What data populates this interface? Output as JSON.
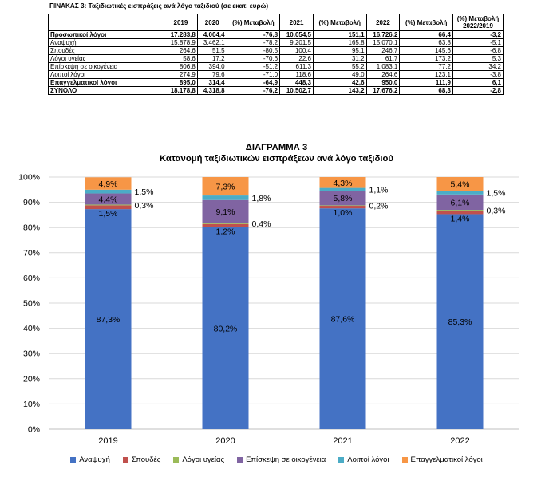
{
  "table": {
    "title": "ΠΙΝΑΚΑΣ 3: Ταξιδιωτικές εισπράξεις ανά λόγο ταξιδιού (σε εκατ. ευρώ)",
    "headers": [
      "",
      "2019",
      "2020",
      "(%) Μεταβολή",
      "2021",
      "(%) Μεταβολή",
      "2022",
      "(%) Μεταβολή",
      "(%) Μεταβολή 2022/2019"
    ],
    "rows": [
      {
        "label": "Προσωπικοί λόγοι",
        "bold": true,
        "values": [
          "17.283,8",
          "4.004,4",
          "-76,8",
          "10.054,5",
          "151,1",
          "16.726,2",
          "66,4",
          "-3,2"
        ]
      },
      {
        "label": "Αναψυχή",
        "bold": false,
        "values": [
          "15.878,9",
          "3.462,1",
          "-78,2",
          "9.201,5",
          "165,8",
          "15.070,1",
          "63,8",
          "-5,1"
        ]
      },
      {
        "label": "Σπουδές",
        "bold": false,
        "values": [
          "264,6",
          "51,5",
          "-80,5",
          "100,4",
          "95,1",
          "246,7",
          "145,6",
          "-6,8"
        ]
      },
      {
        "label": "Λόγοι υγείας",
        "bold": false,
        "values": [
          "58,6",
          "17,2",
          "-70,6",
          "22,6",
          "31,2",
          "61,7",
          "173,2",
          "5,3"
        ]
      },
      {
        "label": "Επίσκεψη σε οικογένεια",
        "bold": false,
        "values": [
          "806,8",
          "394,0",
          "-51,2",
          "611,3",
          "55,2",
          "1.083,1",
          "77,2",
          "34,2"
        ]
      },
      {
        "label": "Λοιποί λόγοι",
        "bold": false,
        "values": [
          "274,9",
          "79,6",
          "-71,0",
          "118,6",
          "49,0",
          "264,6",
          "123,1",
          "-3,8"
        ]
      },
      {
        "label": "Επαγγελματικοί λόγοι",
        "bold": true,
        "values": [
          "895,0",
          "314,4",
          "-64,9",
          "448,3",
          "42,6",
          "950,0",
          "111,9",
          "6,1"
        ]
      },
      {
        "label": "ΣΥΝΟΛΟ",
        "bold": true,
        "values": [
          "18.178,8",
          "4.318,8",
          "-76,2",
          "10.502,7",
          "143,2",
          "17.676,2",
          "68,3",
          "-2,8"
        ]
      }
    ]
  },
  "chart_data": {
    "type": "bar",
    "stacked": true,
    "title": "ΔΙΑΓΡΑΜΜΑ 3",
    "subtitle": "Κατανομή ταξιδιωτικών εισπράξεων ανά λόγο ταξιδιού",
    "categories": [
      "2019",
      "2020",
      "2021",
      "2022"
    ],
    "ylim": [
      0,
      100
    ],
    "yticks": [
      "0%",
      "10%",
      "20%",
      "30%",
      "40%",
      "50%",
      "60%",
      "70%",
      "80%",
      "90%",
      "100%"
    ],
    "grid": true,
    "legend_position": "bottom",
    "series": [
      {
        "name": "Αναψυχή",
        "color": "#4472C4",
        "values": [
          87.3,
          80.2,
          87.6,
          85.3
        ],
        "labels": [
          "87,3%",
          "80,2%",
          "87,6%",
          "85,3%"
        ]
      },
      {
        "name": "Σπουδές",
        "color": "#C0504D",
        "values": [
          1.5,
          1.2,
          1.0,
          1.4
        ],
        "labels": [
          "1,5%",
          "1,2%",
          "1,0%",
          "1,4%"
        ]
      },
      {
        "name": "Λόγοι υγείας",
        "color": "#9BBB59",
        "values": [
          0.3,
          0.4,
          0.2,
          0.3
        ],
        "labels": [
          "0,3%",
          "0,4%",
          "0,2%",
          "0,3%"
        ]
      },
      {
        "name": "Επίσκεψη σε οικογένεια",
        "color": "#8064A2",
        "values": [
          4.4,
          9.1,
          5.8,
          6.1
        ],
        "labels": [
          "4,4%",
          "9,1%",
          "5,8%",
          "6,1%"
        ]
      },
      {
        "name": "Λοιποί λόγοι",
        "color": "#4BACC6",
        "values": [
          1.5,
          1.8,
          1.1,
          1.5
        ],
        "labels": [
          "1,5%",
          "1,8%",
          "1,1%",
          "1,5%"
        ]
      },
      {
        "name": "Επαγγελματικοί λόγοι",
        "color": "#F79646",
        "values": [
          4.9,
          7.3,
          4.3,
          5.4
        ],
        "labels": [
          "4,9%",
          "7,3%",
          "4,3%",
          "5,4%"
        ]
      }
    ]
  }
}
